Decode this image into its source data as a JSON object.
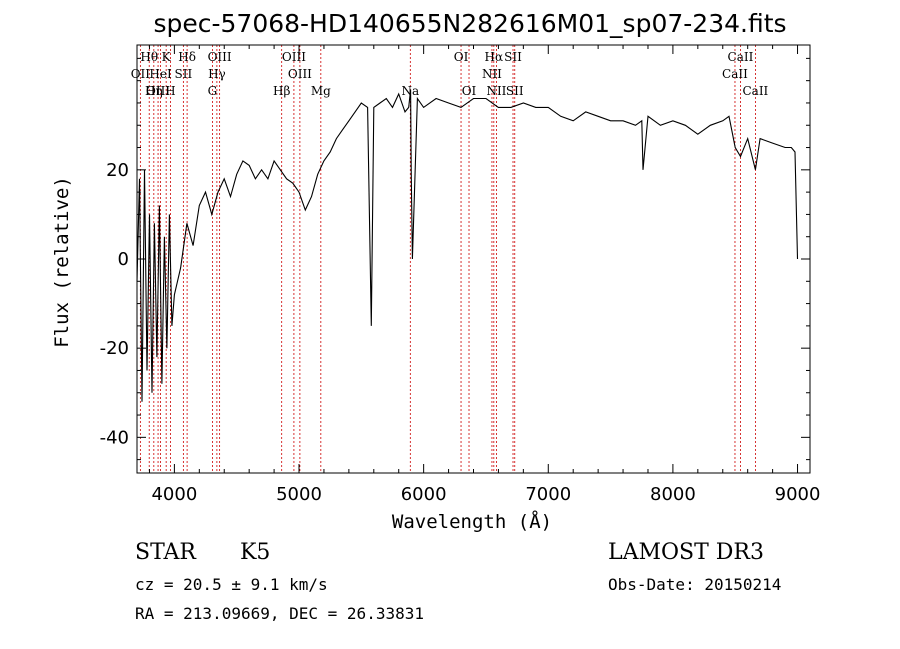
{
  "chart_data": {
    "type": "line",
    "title": "spec-57068-HD140655N282616M01_sp07-234.fits",
    "xlabel": "Wavelength (Å)",
    "ylabel": "Flux (relative)",
    "xlim": [
      3700,
      9100
    ],
    "ylim": [
      -48,
      48
    ],
    "xticks": [
      4000,
      5000,
      6000,
      7000,
      8000,
      9000
    ],
    "yticks": [
      -40,
      -20,
      0,
      20
    ],
    "series": [
      {
        "name": "flux",
        "x": [
          3700,
          3720,
          3740,
          3760,
          3780,
          3800,
          3820,
          3840,
          3860,
          3880,
          3900,
          3920,
          3940,
          3960,
          3980,
          4000,
          4050,
          4100,
          4150,
          4200,
          4250,
          4300,
          4350,
          4400,
          4450,
          4500,
          4550,
          4600,
          4650,
          4700,
          4750,
          4800,
          4850,
          4900,
          4950,
          5000,
          5050,
          5100,
          5150,
          5200,
          5250,
          5300,
          5350,
          5400,
          5450,
          5500,
          5550,
          5580,
          5600,
          5650,
          5700,
          5750,
          5800,
          5850,
          5880,
          5895,
          5900,
          5910,
          5950,
          6000,
          6100,
          6200,
          6300,
          6400,
          6500,
          6600,
          6700,
          6800,
          6900,
          7000,
          7100,
          7200,
          7300,
          7400,
          7500,
          7600,
          7700,
          7750,
          7760,
          7800,
          7900,
          8000,
          8100,
          8200,
          8300,
          8400,
          8450,
          8500,
          8542,
          8600,
          8662,
          8700,
          8800,
          8900,
          8950,
          8980,
          9000
        ],
        "y": [
          -5,
          18,
          -32,
          20,
          -25,
          10,
          -30,
          8,
          -22,
          12,
          -28,
          5,
          -20,
          10,
          -15,
          -8,
          -2,
          8,
          3,
          12,
          15,
          10,
          15,
          18,
          14,
          19,
          22,
          21,
          18,
          20,
          18,
          22,
          20,
          18,
          17,
          15,
          11,
          14,
          19,
          22,
          24,
          27,
          29,
          31,
          33,
          35,
          34,
          -15,
          34,
          35,
          36,
          34,
          37,
          33,
          34,
          38,
          20,
          0,
          36,
          34,
          36,
          35,
          34,
          36,
          36,
          34,
          34,
          35,
          34,
          34,
          32,
          31,
          33,
          32,
          31,
          31,
          30,
          31,
          20,
          32,
          30,
          31,
          30,
          28,
          30,
          31,
          32,
          25,
          23,
          27,
          20,
          27,
          26,
          25,
          25,
          24,
          0
        ]
      }
    ],
    "lines": [
      {
        "name": "Hθ",
        "wl": 3798,
        "row": 1
      },
      {
        "name": "K",
        "wl": 3934,
        "row": 1
      },
      {
        "name": "Hδ",
        "wl": 4102,
        "row": 1
      },
      {
        "name": "OIII",
        "wl": 4363,
        "row": 1
      },
      {
        "name": "OIII",
        "wl": 4959,
        "row": 1
      },
      {
        "name": "OI",
        "wl": 6300,
        "row": 1
      },
      {
        "name": "Hα",
        "wl": 6563,
        "row": 1
      },
      {
        "name": "SII",
        "wl": 6717,
        "row": 1
      },
      {
        "name": "CaII",
        "wl": 8542,
        "row": 1
      },
      {
        "name": "OII",
        "wl": 3727,
        "row": 2
      },
      {
        "name": "HeI",
        "wl": 3889,
        "row": 2
      },
      {
        "name": "SII",
        "wl": 4072,
        "row": 2
      },
      {
        "name": "Hγ",
        "wl": 4341,
        "row": 2
      },
      {
        "name": "OIII",
        "wl": 5007,
        "row": 2
      },
      {
        "name": "NII",
        "wl": 6548,
        "row": 2
      },
      {
        "name": "CaII",
        "wl": 8498,
        "row": 2
      },
      {
        "name": "OIII",
        "wl": 3869,
        "row": 3
      },
      {
        "name": "Hη",
        "wl": 3835,
        "row": 3
      },
      {
        "name": "H",
        "wl": 3968,
        "row": 3
      },
      {
        "name": "G",
        "wl": 4305,
        "row": 3
      },
      {
        "name": "Hβ",
        "wl": 4861,
        "row": 3
      },
      {
        "name": "Mg",
        "wl": 5175,
        "row": 3
      },
      {
        "name": "Na",
        "wl": 5893,
        "row": 3
      },
      {
        "name": "OI",
        "wl": 6364,
        "row": 3
      },
      {
        "name": "NII",
        "wl": 6584,
        "row": 3
      },
      {
        "name": "SII",
        "wl": 6731,
        "row": 3
      },
      {
        "name": "CaII",
        "wl": 8662,
        "row": 3
      }
    ]
  },
  "info": {
    "object_type": "STAR",
    "subclass": "K5",
    "survey": "LAMOST DR3",
    "cz": "cz = 20.5 ± 9.1 km/s",
    "obs_date": "Obs-Date: 20150214",
    "coords": "RA = 213.09669, DEC =  26.33831"
  },
  "colors": {
    "spectrum": "#000000",
    "line_marker": "#cc0000",
    "axis": "#000000"
  }
}
